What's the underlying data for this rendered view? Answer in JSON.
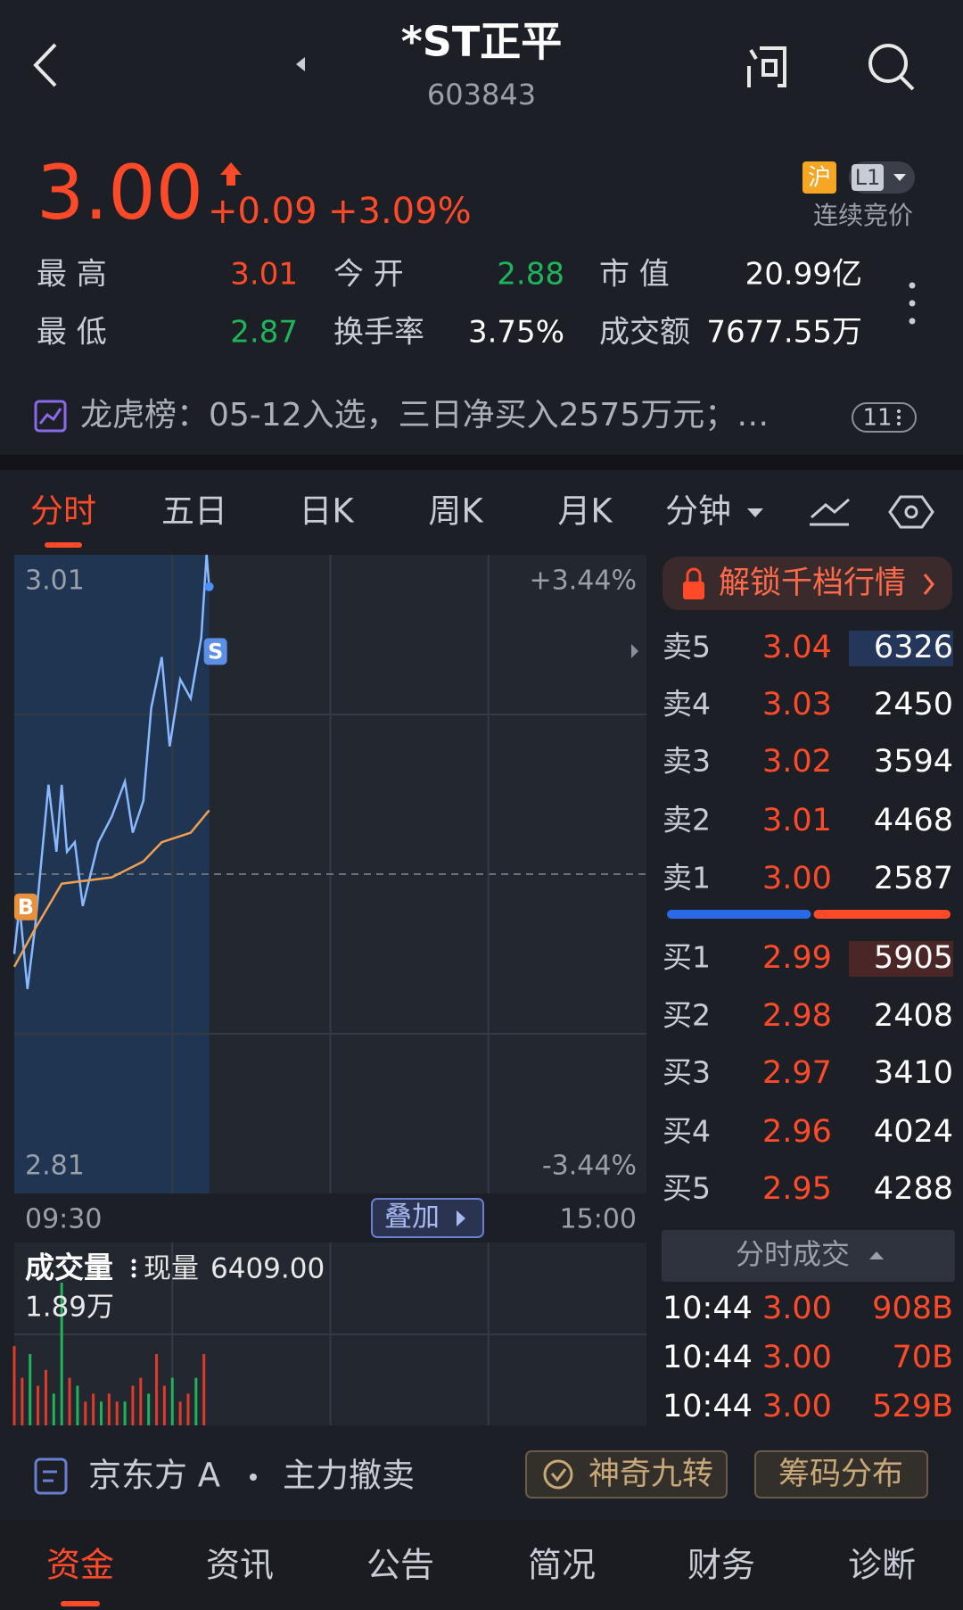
{
  "header": {
    "title": "*ST正平",
    "code": "603843"
  },
  "quote": {
    "price": "3.00",
    "change": "+0.09",
    "change_pct": "+3.09%",
    "market": "沪",
    "level": "L1",
    "status": "连续竞价"
  },
  "stats": [
    [
      {
        "label": "最 高",
        "value": "3.01",
        "color": "#ff4a2a"
      },
      {
        "label": "今 开",
        "value": "2.88",
        "color": "#1fb35a"
      },
      {
        "label": "市 值",
        "value": "20.99亿",
        "color": "#ffffff"
      }
    ],
    [
      {
        "label": "最 低",
        "value": "2.87",
        "color": "#1fb35a"
      },
      {
        "label": "换手率",
        "value": "3.75%",
        "color": "#ffffff"
      },
      {
        "label": "成交额",
        "value": "7677.55万",
        "color": "#ffffff"
      }
    ]
  ],
  "notice": {
    "text": "龙虎榜：05-12入选，三日净买入2575万元；…",
    "badge": "11"
  },
  "tabs": [
    "分时",
    "五日",
    "日K",
    "周K",
    "月K",
    "分钟"
  ],
  "chart_data": {
    "type": "line",
    "x": [
      0,
      2,
      5,
      8,
      13,
      16,
      18,
      20,
      23,
      26,
      32,
      37,
      42,
      45,
      49,
      52,
      56,
      59,
      63,
      67,
      71,
      72,
      73,
      74
    ],
    "series": [
      {
        "color": "#8ab8ff",
        "values": [
          2.885,
          2.9,
          2.874,
          2.894,
          2.938,
          2.917,
          2.938,
          2.917,
          2.92,
          2.9,
          2.92,
          2.928,
          2.939,
          2.923,
          2.933,
          2.962,
          2.978,
          2.95,
          2.971,
          2.965,
          2.984,
          2.997,
          3.01,
          3.0
        ]
      },
      {
        "color": "#f0a050",
        "values": [
          2.881,
          null,
          null,
          2.893,
          null,
          null,
          2.907,
          null,
          null,
          null,
          null,
          2.909,
          null,
          null,
          2.914,
          null,
          2.92,
          null,
          null,
          2.923,
          null,
          null,
          null,
          2.93
        ]
      }
    ],
    "xlim": [
      0,
      240
    ],
    "xticks": [
      {
        "value": 0,
        "label": "09:30"
      },
      {
        "value": 240,
        "label": "15:00"
      }
    ],
    "ylim": [
      2.81,
      3.01
    ],
    "yticks": [
      2.81,
      3.01
    ],
    "y2lim": [
      -3.44,
      3.44
    ],
    "y2ticks": [
      {
        "value": 3.44,
        "label": "+3.44%"
      },
      {
        "value": -3.44,
        "label": "-3.44%"
      }
    ],
    "annotations": [
      {
        "text": "B",
        "x": 1,
        "y": 2.9,
        "color": "#e8913a"
      },
      {
        "text": "S",
        "x": 73,
        "y": 2.98,
        "color": "#5b8fe8"
      }
    ],
    "overlay_button": "叠加"
  },
  "volume": {
    "type": "bar",
    "title": "成交量",
    "current_label": "现量",
    "current": "6409.00",
    "max_label": "1.89万",
    "ylim": [
      0,
      1.89
    ],
    "x": [
      0,
      3,
      6,
      9,
      12,
      15,
      18,
      21,
      24,
      27,
      30,
      33,
      36,
      39,
      42,
      45,
      48,
      51,
      54,
      57,
      60,
      63,
      66,
      69,
      72
    ],
    "values": [
      1.0,
      0.6,
      0.9,
      0.5,
      0.7,
      0.4,
      1.8,
      0.6,
      0.5,
      0.3,
      0.4,
      0.3,
      0.4,
      0.3,
      0.3,
      0.5,
      0.6,
      0.4,
      0.9,
      0.5,
      0.6,
      0.3,
      0.4,
      0.6,
      0.9
    ],
    "colors": [
      "#e03a2a",
      "#e03a2a",
      "#1fb35a",
      "#e03a2a",
      "#e03a2a",
      "#1fb35a",
      "#1fb35a",
      "#e03a2a",
      "#1fb35a",
      "#e03a2a",
      "#e03a2a",
      "#1fb35a",
      "#e03a2a",
      "#e03a2a",
      "#1fb35a",
      "#e03a2a",
      "#e03a2a",
      "#1fb35a",
      "#e03a2a",
      "#e03a2a",
      "#1fb35a",
      "#e03a2a",
      "#e03a2a",
      "#1fb35a",
      "#e03a2a"
    ]
  },
  "order_book": {
    "unlock": "解锁千档行情",
    "asks": [
      {
        "label": "卖5",
        "price": "3.04",
        "volume": 6326
      },
      {
        "label": "卖4",
        "price": "3.03",
        "volume": 2450
      },
      {
        "label": "卖3",
        "price": "3.02",
        "volume": 3594
      },
      {
        "label": "卖2",
        "price": "3.01",
        "volume": 4468
      },
      {
        "label": "卖1",
        "price": "3.00",
        "volume": 2587
      }
    ],
    "bids": [
      {
        "label": "买1",
        "price": "2.99",
        "volume": 5905
      },
      {
        "label": "买2",
        "price": "2.98",
        "volume": 2408
      },
      {
        "label": "买3",
        "price": "2.97",
        "volume": 3410
      },
      {
        "label": "买4",
        "price": "2.96",
        "volume": 4024
      },
      {
        "label": "买5",
        "price": "2.95",
        "volume": 4288
      }
    ]
  },
  "trades": {
    "title": "分时成交",
    "rows": [
      {
        "time": "10:44",
        "price": "3.00",
        "volume": "908B"
      },
      {
        "time": "10:44",
        "price": "3.00",
        "volume": "70B"
      },
      {
        "time": "10:44",
        "price": "3.00",
        "volume": "529B"
      }
    ]
  },
  "footer": {
    "stock": "京东方 A",
    "signal": "主力撤卖",
    "buttons": [
      "神奇九转",
      "筹码分布"
    ],
    "tabs": [
      "资金",
      "资讯",
      "公告",
      "简况",
      "财务",
      "诊断"
    ]
  }
}
